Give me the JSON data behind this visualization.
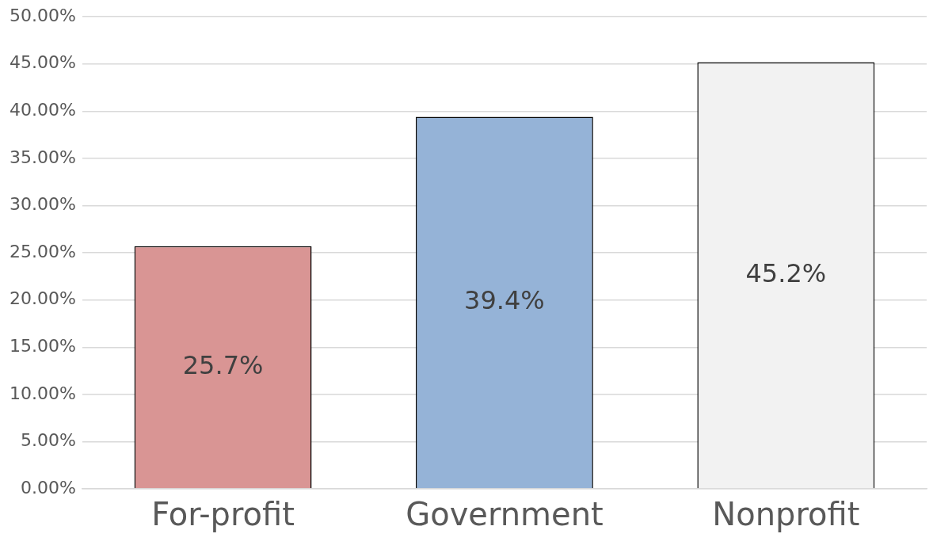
{
  "chart_data": {
    "type": "bar",
    "categories": [
      "For-profit",
      "Government",
      "Nonprofit"
    ],
    "values": [
      25.7,
      39.4,
      45.2
    ],
    "colors": [
      "#d99594",
      "#95b3d7",
      "#f2f2f2"
    ],
    "value_labels": [
      "25.7%",
      "39.4%",
      "45.2%"
    ],
    "ylim": [
      0,
      50
    ],
    "yticks": [
      {
        "value": 0,
        "label": "0.00%"
      },
      {
        "value": 5,
        "label": "5.00%"
      },
      {
        "value": 10,
        "label": "10.00%"
      },
      {
        "value": 15,
        "label": "15.00%"
      },
      {
        "value": 20,
        "label": "20.00%"
      },
      {
        "value": 25,
        "label": "25.00%"
      },
      {
        "value": 30,
        "label": "30.00%"
      },
      {
        "value": 35,
        "label": "35.00%"
      },
      {
        "value": 40,
        "label": "40.00%"
      },
      {
        "value": 45,
        "label": "45.00%"
      },
      {
        "value": 50,
        "label": "50.00%"
      }
    ],
    "grid": "y",
    "legend": false
  }
}
